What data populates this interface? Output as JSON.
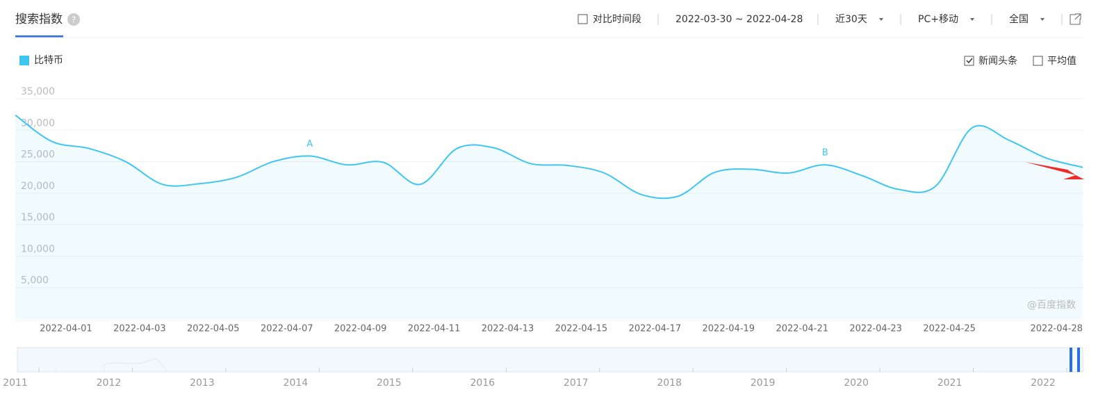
{
  "header": {
    "tab": "搜索指数",
    "compare": "对比时间段",
    "range": "2022-03-30 ~ 2022-04-28",
    "period": "近30天",
    "device": "PC+移动",
    "region": "全国"
  },
  "options": {
    "news": "新闻头条",
    "average": "平均值"
  },
  "watermark": "@百度指数",
  "chart_data": {
    "type": "line",
    "x": [
      null,
      null,
      "2022-04-01",
      null,
      "2022-04-03",
      null,
      "2022-04-05",
      null,
      "2022-04-07",
      null,
      "2022-04-09",
      null,
      "2022-04-11",
      null,
      "2022-04-13",
      null,
      "2022-04-15",
      null,
      "2022-04-17",
      null,
      "2022-04-19",
      null,
      "2022-04-21",
      null,
      "2022-04-23",
      null,
      "2022-04-25",
      null,
      null,
      "2022-04-28"
    ],
    "series": [
      {
        "name": "比特币",
        "color": "#3ec5f0",
        "values": [
          32400,
          28200,
          27100,
          25000,
          21400,
          21500,
          22500,
          25000,
          25900,
          24500,
          24900,
          21400,
          27100,
          27200,
          24700,
          24400,
          23200,
          19800,
          19500,
          23300,
          23800,
          23200,
          24500,
          22800,
          20600,
          21100,
          30400,
          28400,
          25600,
          24100
        ]
      }
    ],
    "ylim": [
      0,
      35000
    ],
    "yticks": [
      {
        "value": 5000,
        "label": "5,000"
      },
      {
        "value": 10000,
        "label": "10,000"
      },
      {
        "value": 15000,
        "label": "15,000"
      },
      {
        "value": 20000,
        "label": "20,000"
      },
      {
        "value": 25000,
        "label": "25,000"
      },
      {
        "value": 30000,
        "label": "30,000"
      },
      {
        "value": 35000,
        "label": "35,000"
      }
    ],
    "grid": true,
    "annotations": [
      {
        "text": "A",
        "at": 8
      },
      {
        "text": "B",
        "at": 22
      }
    ]
  },
  "navigator": {
    "years": [
      "2011",
      "2012",
      "2013",
      "2014",
      "2015",
      "2016",
      "2017",
      "2018",
      "2019",
      "2020",
      "2021",
      "2022"
    ]
  }
}
